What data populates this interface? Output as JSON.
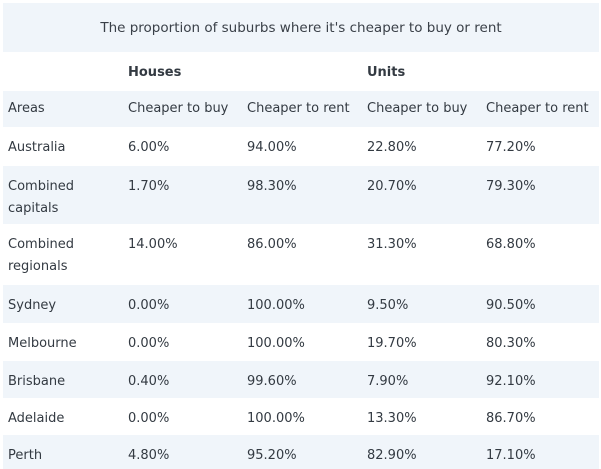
{
  "table": {
    "title": "The proportion of suburbs where it's cheaper to buy or rent",
    "groups": {
      "houses": "Houses",
      "units": "Units"
    },
    "columns": [
      "Areas",
      "Cheaper to buy",
      "Cheaper to rent",
      "Cheaper to buy",
      "Cheaper to rent"
    ],
    "rows": [
      [
        "Australia",
        "6.00%",
        "94.00%",
        "22.80%",
        "77.20%"
      ],
      [
        "Combined capitals",
        "1.70%",
        "98.30%",
        "20.70%",
        "79.30%"
      ],
      [
        "Combined regionals",
        "14.00%",
        "86.00%",
        "31.30%",
        "68.80%"
      ],
      [
        "Sydney",
        "0.00%",
        "100.00%",
        "9.50%",
        "90.50%"
      ],
      [
        "Melbourne",
        "0.00%",
        "100.00%",
        "19.70%",
        "80.30%"
      ],
      [
        "Brisbane",
        "0.40%",
        "99.60%",
        "7.90%",
        "92.10%"
      ],
      [
        "Adelaide",
        "0.00%",
        "100.00%",
        "13.30%",
        "86.70%"
      ],
      [
        "Perth",
        "4.80%",
        "95.20%",
        "82.90%",
        "17.10%"
      ]
    ]
  },
  "colors": {
    "row_shade": "#f0f5fa",
    "text": "#333a42"
  }
}
